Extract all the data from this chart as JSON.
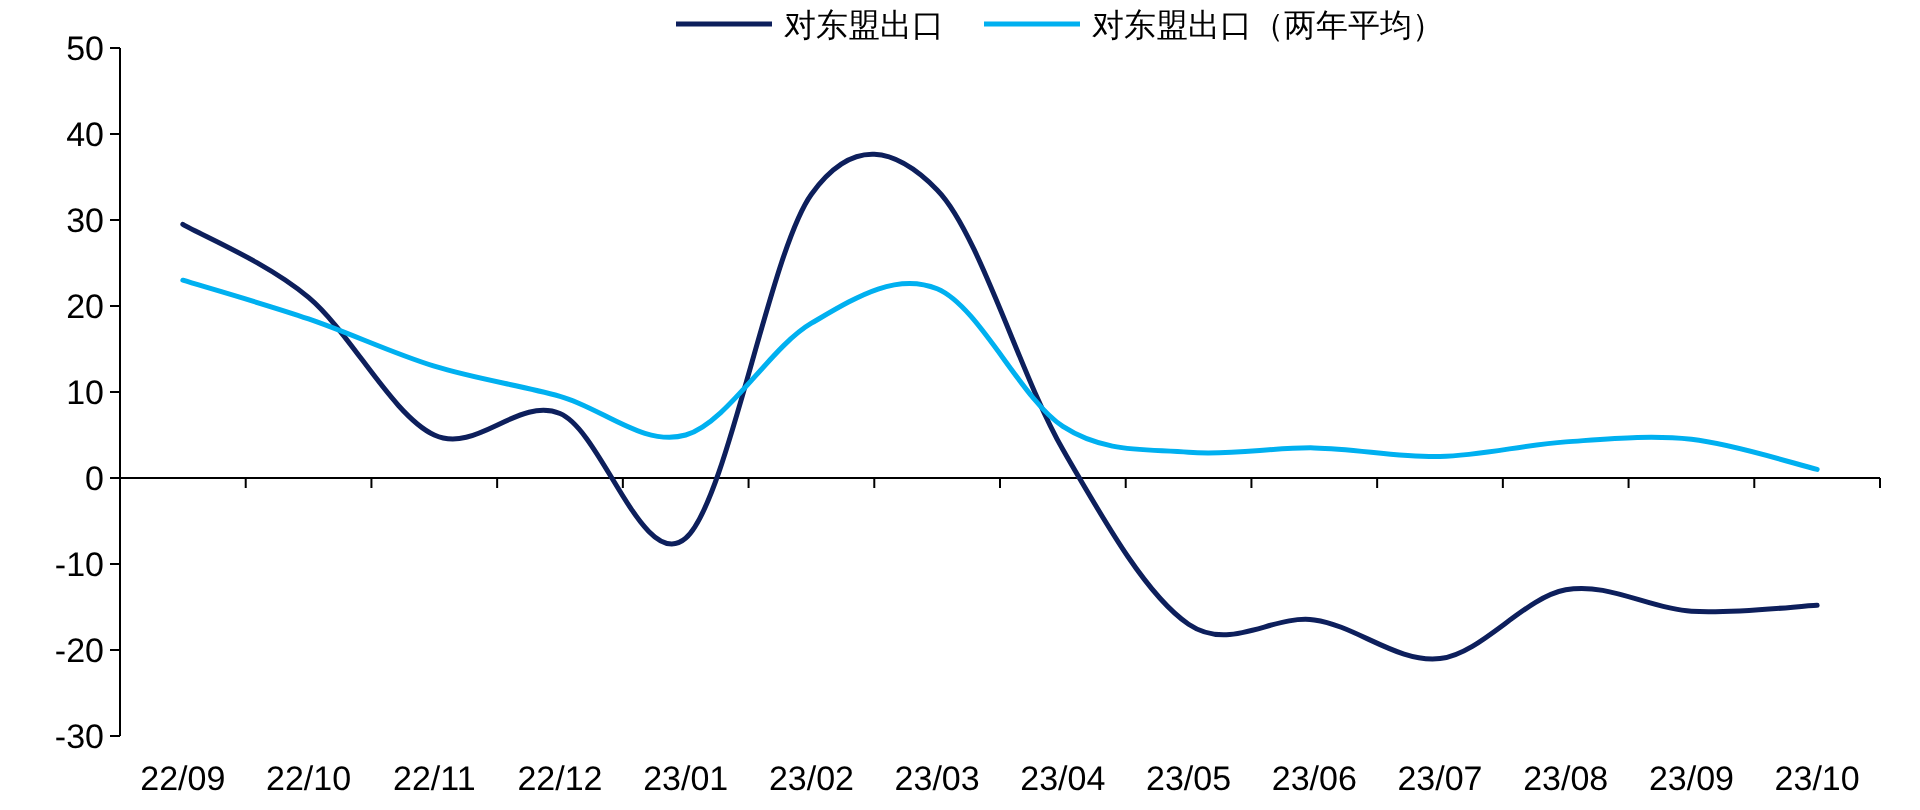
{
  "chart_data": {
    "type": "line",
    "categories": [
      "22/09",
      "22/10",
      "22/11",
      "22/12",
      "23/01",
      "23/02",
      "23/03",
      "23/04",
      "23/05",
      "23/06",
      "23/07",
      "23/08",
      "23/09",
      "23/10"
    ],
    "series": [
      {
        "name": "对东盟出口",
        "color": "#0d1f5c",
        "values": [
          29.5,
          21,
          5,
          7.5,
          -7,
          33,
          33.5,
          3.3,
          -17,
          -16.5,
          -21,
          -13,
          -15.5,
          -14.8
        ]
      },
      {
        "name": "对东盟出口（两年平均）",
        "color": "#00b0f0",
        "values": [
          23,
          18.5,
          13,
          9.5,
          5,
          18,
          22,
          6,
          3,
          3.5,
          2.5,
          4.2,
          4.5,
          1
        ]
      }
    ],
    "ylim": [
      -30,
      50
    ],
    "yticks": [
      -30,
      -20,
      -10,
      0,
      10,
      20,
      30,
      40,
      50
    ],
    "legend": "top",
    "marker": "none",
    "line_style": "solid"
  }
}
